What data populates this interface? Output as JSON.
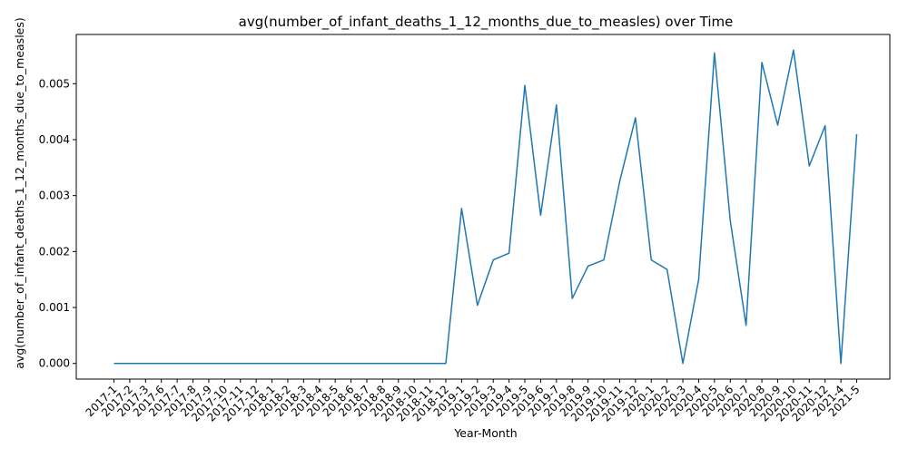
{
  "chart_data": {
    "type": "line",
    "title": "avg(number_of_infant_deaths_1_12_months_due_to_measles) over Time",
    "xlabel": "Year-Month",
    "ylabel": "avg(number_of_infant_deaths_1_12_months_due_to_measles)",
    "categories": [
      "2017-1",
      "2017-2",
      "2017-3",
      "2017-6",
      "2017-7",
      "2017-8",
      "2017-9",
      "2017-10",
      "2017-11",
      "2017-12",
      "2018-1",
      "2018-2",
      "2018-3",
      "2018-4",
      "2018-5",
      "2018-6",
      "2018-7",
      "2018-8",
      "2018-9",
      "2018-10",
      "2018-11",
      "2018-12",
      "2019-1",
      "2019-2",
      "2019-3",
      "2019-4",
      "2019-5",
      "2019-6",
      "2019-7",
      "2019-8",
      "2019-9",
      "2019-10",
      "2019-11",
      "2019-12",
      "2020-1",
      "2020-2",
      "2020-3",
      "2020-4",
      "2020-5",
      "2020-6",
      "2020-7",
      "2020-8",
      "2020-9",
      "2020-10",
      "2020-11",
      "2020-12",
      "2021-4",
      "2021-5"
    ],
    "values": [
      0,
      0,
      0,
      0,
      0,
      0,
      0,
      0,
      0,
      0,
      0,
      0,
      0,
      0,
      0,
      0,
      0,
      0,
      0,
      0,
      0,
      0,
      0.00277,
      0.00104,
      0.00185,
      0.00197,
      0.00497,
      0.00265,
      0.00462,
      0.00116,
      0.00174,
      0.00185,
      0.00325,
      0.00439,
      0.00185,
      0.00168,
      0,
      0.0015,
      0.00555,
      0.00255,
      0.00068,
      0.00538,
      0.00426,
      0.0056,
      0.00353,
      0.00425,
      0,
      0.0041
    ],
    "yticks": [
      "0.000",
      "0.001",
      "0.002",
      "0.003",
      "0.004",
      "0.005"
    ],
    "ylim": [
      -0.00028,
      0.00588
    ],
    "grid": false,
    "legend": "none",
    "line_color": "#1f77b4"
  }
}
